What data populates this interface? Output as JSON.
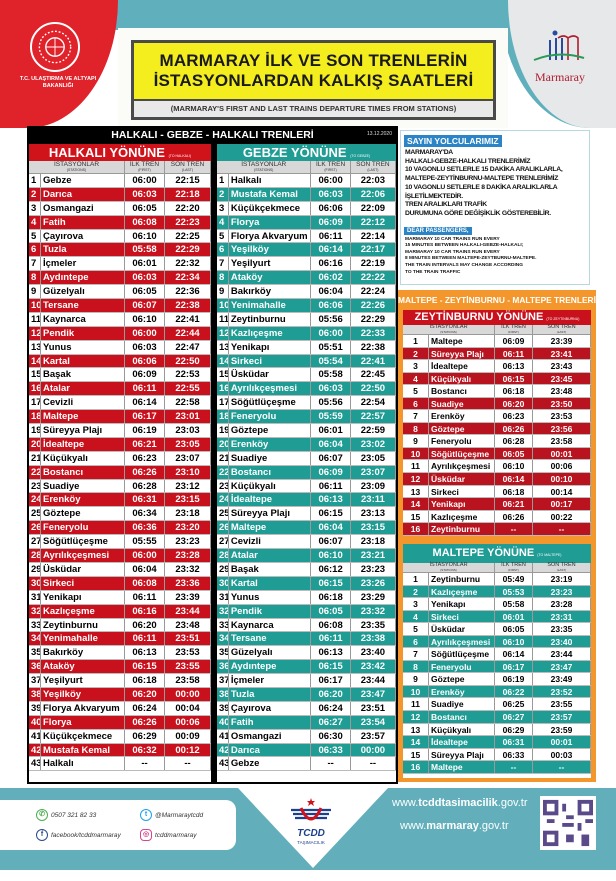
{
  "header": {
    "ministry_name": "T.C. ULAŞTIRMA VE ALTYAPI BAKANLIĞI",
    "title_line1": "MARMARAY İLK VE SON TRENLERİN",
    "title_line2": "İSTASYONLARDAN KALKIŞ SAATLERİ",
    "subtitle": "(MARMARAY'S FIRST AND LAST TRAINS DEPARTURE TIMES FROM STATIONS)",
    "brand": "Marmaray"
  },
  "colors": {
    "red": "#d0121b",
    "red_dark": "#b51320",
    "teal": "#1f9c94",
    "orange": "#f3972c",
    "yellow": "#f4ee1e"
  },
  "main": {
    "title": "HALKALI - GEBZE - HALKALI TRENLERİ",
    "date": "13.12.2020",
    "columns": {
      "stations": "İSTASYONLAR",
      "stations_en": "(STATIONS)",
      "first": "İLK TREN",
      "first_en": "(FIRST)",
      "last": "SON TREN",
      "last_en": "(LAST)"
    },
    "halkali": {
      "title": "HALKALI YÖNÜNE",
      "title_en": "(TO HALKALI)",
      "rows": [
        [
          "1",
          "Gebze",
          "06:00",
          "22:15"
        ],
        [
          "2",
          "Darıca",
          "06:03",
          "22:18"
        ],
        [
          "3",
          "Osmangazi",
          "06:05",
          "22:20"
        ],
        [
          "4",
          "Fatih",
          "06:08",
          "22:23"
        ],
        [
          "5",
          "Çayırova",
          "06:10",
          "22:25"
        ],
        [
          "6",
          "Tuzla",
          "05:58",
          "22:29"
        ],
        [
          "7",
          "İçmeler",
          "06:01",
          "22:32"
        ],
        [
          "8",
          "Aydıntepe",
          "06:03",
          "22:34"
        ],
        [
          "9",
          "Güzelyalı",
          "06:05",
          "22:36"
        ],
        [
          "10",
          "Tersane",
          "06:07",
          "22:38"
        ],
        [
          "11",
          "Kaynarca",
          "06:10",
          "22:41"
        ],
        [
          "12",
          "Pendik",
          "06:00",
          "22:44"
        ],
        [
          "13",
          "Yunus",
          "06:03",
          "22:47"
        ],
        [
          "14",
          "Kartal",
          "06:06",
          "22:50"
        ],
        [
          "15",
          "Başak",
          "06:09",
          "22:53"
        ],
        [
          "16",
          "Atalar",
          "06:11",
          "22:55"
        ],
        [
          "17",
          "Cevizli",
          "06:14",
          "22:58"
        ],
        [
          "18",
          "Maltepe",
          "06:17",
          "23:01"
        ],
        [
          "19",
          "Süreyya Plajı",
          "06:19",
          "23:03"
        ],
        [
          "20",
          "İdealtepe",
          "06:21",
          "23:05"
        ],
        [
          "21",
          "Küçükyalı",
          "06:23",
          "23:07"
        ],
        [
          "22",
          "Bostancı",
          "06:26",
          "23:10"
        ],
        [
          "23",
          "Suadiye",
          "06:28",
          "23:12"
        ],
        [
          "24",
          "Erenköy",
          "06:31",
          "23:15"
        ],
        [
          "25",
          "Göztepe",
          "06:34",
          "23:18"
        ],
        [
          "26",
          "Feneryolu",
          "06:36",
          "23:20"
        ],
        [
          "27",
          "Söğütlüçeşme",
          "05:55",
          "23:23"
        ],
        [
          "28",
          "Ayrılıkçeşmesi",
          "06:00",
          "23:28"
        ],
        [
          "29",
          "Üsküdar",
          "06:04",
          "23:32"
        ],
        [
          "30",
          "Sirkeci",
          "06:08",
          "23:36"
        ],
        [
          "31",
          "Yenikapı",
          "06:11",
          "23:39"
        ],
        [
          "32",
          "Kazlıçeşme",
          "06:16",
          "23:44"
        ],
        [
          "33",
          "Zeytinburnu",
          "06:20",
          "23:48"
        ],
        [
          "34",
          "Yenimahalle",
          "06:11",
          "23:51"
        ],
        [
          "35",
          "Bakırköy",
          "06:13",
          "23:53"
        ],
        [
          "36",
          "Ataköy",
          "06:15",
          "23:55"
        ],
        [
          "37",
          "Yeşilyurt",
          "06:18",
          "23:58"
        ],
        [
          "38",
          "Yeşilköy",
          "06:20",
          "00:00"
        ],
        [
          "39",
          "Florya Akvaryum",
          "06:24",
          "00:04"
        ],
        [
          "40",
          "Florya",
          "06:26",
          "00:06"
        ],
        [
          "41",
          "Küçükçekmece",
          "06:29",
          "00:09"
        ],
        [
          "42",
          "Mustafa Kemal",
          "06:32",
          "00:12"
        ],
        [
          "43",
          "Halkalı",
          "--",
          "--"
        ]
      ]
    },
    "gebze": {
      "title": "GEBZE YÖNÜNE",
      "title_en": "(TO GEBZE)",
      "rows": [
        [
          "1",
          "Halkalı",
          "06:00",
          "22:03"
        ],
        [
          "2",
          "Mustafa Kemal",
          "06:03",
          "22:06"
        ],
        [
          "3",
          "Küçükçekmece",
          "06:06",
          "22:09"
        ],
        [
          "4",
          "Florya",
          "06:09",
          "22:12"
        ],
        [
          "5",
          "Florya Akvaryum",
          "06:11",
          "22:14"
        ],
        [
          "6",
          "Yeşilköy",
          "06:14",
          "22:17"
        ],
        [
          "7",
          "Yeşilyurt",
          "06:16",
          "22:19"
        ],
        [
          "8",
          "Ataköy",
          "06:02",
          "22:22"
        ],
        [
          "9",
          "Bakırköy",
          "06:04",
          "22:24"
        ],
        [
          "10",
          "Yenimahalle",
          "06:06",
          "22:26"
        ],
        [
          "11",
          "Zeytinburnu",
          "05:56",
          "22:29"
        ],
        [
          "12",
          "Kazlıçeşme",
          "06:00",
          "22:33"
        ],
        [
          "13",
          "Yenikapı",
          "05:51",
          "22:38"
        ],
        [
          "14",
          "Sirkeci",
          "05:54",
          "22:41"
        ],
        [
          "15",
          "Üsküdar",
          "05:58",
          "22:45"
        ],
        [
          "16",
          "Ayrılıkçeşmesi",
          "06:03",
          "22:50"
        ],
        [
          "17",
          "Söğütlüçeşme",
          "05:56",
          "22:54"
        ],
        [
          "18",
          "Feneryolu",
          "05:59",
          "22:57"
        ],
        [
          "19",
          "Göztepe",
          "06:01",
          "22:59"
        ],
        [
          "20",
          "Erenköy",
          "06:04",
          "23:02"
        ],
        [
          "21",
          "Suadiye",
          "06:07",
          "23:05"
        ],
        [
          "22",
          "Bostancı",
          "06:09",
          "23:07"
        ],
        [
          "23",
          "Küçükyalı",
          "06:11",
          "23:09"
        ],
        [
          "24",
          "İdealtepe",
          "06:13",
          "23:11"
        ],
        [
          "25",
          "Süreyya Plajı",
          "06:15",
          "23:13"
        ],
        [
          "26",
          "Maltepe",
          "06:04",
          "23:15"
        ],
        [
          "27",
          "Cevizli",
          "06:07",
          "23:18"
        ],
        [
          "28",
          "Atalar",
          "06:10",
          "23:21"
        ],
        [
          "29",
          "Başak",
          "06:12",
          "23:23"
        ],
        [
          "30",
          "Kartal",
          "06:15",
          "23:26"
        ],
        [
          "31",
          "Yunus",
          "06:18",
          "23:29"
        ],
        [
          "32",
          "Pendik",
          "06:05",
          "23:32"
        ],
        [
          "33",
          "Kaynarca",
          "06:08",
          "23:35"
        ],
        [
          "34",
          "Tersane",
          "06:11",
          "23:38"
        ],
        [
          "35",
          "Güzelyalı",
          "06:13",
          "23:40"
        ],
        [
          "36",
          "Aydıntepe",
          "06:15",
          "23:42"
        ],
        [
          "37",
          "İçmeler",
          "06:17",
          "23:44"
        ],
        [
          "38",
          "Tuzla",
          "06:20",
          "23:47"
        ],
        [
          "39",
          "Çayırova",
          "06:24",
          "23:51"
        ],
        [
          "40",
          "Fatih",
          "06:27",
          "23:54"
        ],
        [
          "41",
          "Osmangazi",
          "06:30",
          "23:57"
        ],
        [
          "42",
          "Darıca",
          "06:33",
          "00:00"
        ],
        [
          "43",
          "Gebze",
          "--",
          "--"
        ]
      ]
    }
  },
  "notice": {
    "title_tr": "SAYIN YOLCULARIMIZ",
    "lines_tr": [
      "MARMARAY'DA",
      "HALKALI-GEBZE-HALKALI TRENLERİMİZ",
      "10 VAGONLU SETLERLE 15 DAKİKA ARALIKLARLA,",
      "MALTEPE-ZEYTİNBURNU-MALTEPE TRENLERİMİZ",
      "10 VAGONLU SETLERLE 8 DAKİKA ARALIKLARLA",
      "İŞLETİLMEKTEDİR.",
      "TREN ARALIKLARI TRAFİK",
      "DURUMUNA GÖRE DEĞİŞİKLİK GÖSTEREBİLİR."
    ],
    "title_en": "DEAR PASSENGERS,",
    "lines_en": [
      "MARMARAY 10 CAR TRAINS RUN EVERY",
      "15 MINUTES BETWEEN HALKALI-GEBZE-HALKALI;",
      "MARMARAY 10 CAR TRAINS RUN EVERY",
      "8 MINUTES BETWEEN MALTEPE-ZEYTBURNU-MALTEPE.",
      "THE TRAIN INTERVALS MAY CHANGE ACCORDING",
      "TO THE TRAIN TRAFFIC"
    ]
  },
  "secondary": {
    "title": "MALTEPE - ZEYTİNBURNU - MALTEPE TRENLERİ",
    "zeytinburnu": {
      "title": "ZEYTİNBURNU YÖNÜNE",
      "title_en": "(TO ZEYTINBURNU)",
      "rows": [
        [
          "1",
          "Maltepe",
          "06:09",
          "23:39"
        ],
        [
          "2",
          "Süreyya Plajı",
          "06:11",
          "23:41"
        ],
        [
          "3",
          "İdealtepe",
          "06:13",
          "23:43"
        ],
        [
          "4",
          "Küçükyalı",
          "06:15",
          "23:45"
        ],
        [
          "5",
          "Bostancı",
          "06:18",
          "23:48"
        ],
        [
          "6",
          "Suadiye",
          "06:20",
          "23:50"
        ],
        [
          "7",
          "Erenköy",
          "06:23",
          "23:53"
        ],
        [
          "8",
          "Göztepe",
          "06:26",
          "23:56"
        ],
        [
          "9",
          "Feneryolu",
          "06:28",
          "23:58"
        ],
        [
          "10",
          "Söğütlüçeşme",
          "06:05",
          "00:01"
        ],
        [
          "11",
          "Ayrılıkçeşmesi",
          "06:10",
          "00:06"
        ],
        [
          "12",
          "Üsküdar",
          "06:14",
          "00:10"
        ],
        [
          "13",
          "Sirkeci",
          "06:18",
          "00:14"
        ],
        [
          "14",
          "Yenikapı",
          "06:21",
          "00:17"
        ],
        [
          "15",
          "Kazlıçeşme",
          "06:26",
          "00:22"
        ],
        [
          "16",
          "Zeytinburnu",
          "--",
          "--"
        ]
      ]
    },
    "maltepe": {
      "title": "MALTEPE YÖNÜNE",
      "title_en": "(TO MALTEPE)",
      "rows": [
        [
          "1",
          "Zeytinburnu",
          "05:49",
          "23:19"
        ],
        [
          "2",
          "Kazlıçeşme",
          "05:53",
          "23:23"
        ],
        [
          "3",
          "Yenikapı",
          "05:58",
          "23:28"
        ],
        [
          "4",
          "Sirkeci",
          "06:01",
          "23:31"
        ],
        [
          "5",
          "Üsküdar",
          "06:05",
          "23:35"
        ],
        [
          "6",
          "Ayrılıkçeşmesi",
          "06:10",
          "23:40"
        ],
        [
          "7",
          "Söğütlüçeşme",
          "06:14",
          "23:44"
        ],
        [
          "8",
          "Feneryolu",
          "06:17",
          "23:47"
        ],
        [
          "9",
          "Göztepe",
          "06:19",
          "23:49"
        ],
        [
          "10",
          "Erenköy",
          "06:22",
          "23:52"
        ],
        [
          "11",
          "Suadiye",
          "06:25",
          "23:55"
        ],
        [
          "12",
          "Bostancı",
          "06:27",
          "23:57"
        ],
        [
          "13",
          "Küçükyalı",
          "06:29",
          "23:59"
        ],
        [
          "14",
          "İdealtepe",
          "06:31",
          "00:01"
        ],
        [
          "15",
          "Süreyya Plajı",
          "06:33",
          "00:03"
        ],
        [
          "16",
          "Maltepe",
          "--",
          "--"
        ]
      ]
    }
  },
  "footer": {
    "phone": "0507 321 82 33",
    "twitter": "@Marmaraytcdd",
    "facebook": "facebook/tcddmarmaray",
    "instagram": "tcddmarmaray",
    "tcdd": "TCDD",
    "tcdd_sub": "TAŞIMACILIK",
    "url1_pre": "www.",
    "url1_bold": "tcddtasimacilik",
    "url1_post": ".gov.tr",
    "url2_pre": "www.",
    "url2_bold": "marmaray",
    "url2_post": ".gov.tr"
  }
}
